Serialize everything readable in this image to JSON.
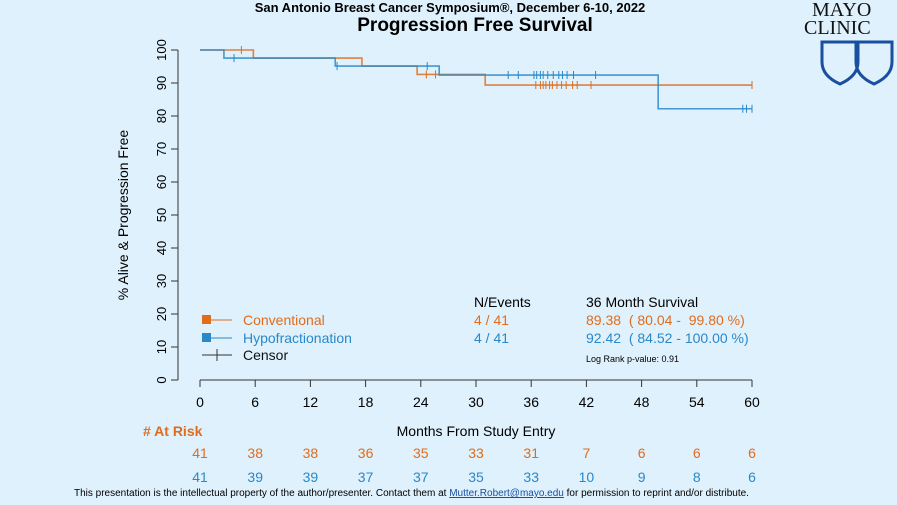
{
  "header": {
    "conference": "San Antonio Breast Cancer Symposium®, December 6-10, 2022",
    "logo_text": [
      "MAYO",
      "CLINIC"
    ]
  },
  "colors": {
    "background": "#dff1fc",
    "conventional": "#e06c1c",
    "hypofractionation": "#2a88c8",
    "at_risk_header": "#e06c1c"
  },
  "chart_data": {
    "type": "line",
    "subtype": "kaplan-meier step",
    "title": "Progression Free Survival",
    "xlabel": "Months From Study Entry",
    "ylabel": "% Alive & Progression Free",
    "xlim": [
      0,
      60
    ],
    "ylim": [
      0,
      100
    ],
    "xticks": [
      0,
      6,
      12,
      18,
      24,
      30,
      36,
      42,
      48,
      54,
      60
    ],
    "yticks": [
      0,
      10,
      20,
      30,
      40,
      50,
      60,
      70,
      80,
      90,
      100
    ],
    "grid": false,
    "series": [
      {
        "name": "Conventional",
        "color": "#e06c1c",
        "steps": [
          [
            0,
            100
          ],
          [
            5.8,
            97.56
          ],
          [
            17.6,
            95.12
          ],
          [
            23.6,
            92.6
          ],
          [
            31,
            89.38
          ],
          [
            60,
            89.38
          ]
        ],
        "censors": [
          4.5,
          24.6,
          25.6,
          36.5,
          37,
          37.3,
          37.6,
          38,
          38.3,
          38.8,
          39.3,
          39.8,
          40.5,
          41,
          42.5,
          60
        ],
        "n_events": "4 / 41",
        "survival_36": "89.38  ( 80.04 -  99.80 %)",
        "at_risk": [
          41,
          38,
          38,
          36,
          35,
          33,
          31,
          7,
          6,
          6,
          6
        ]
      },
      {
        "name": "Hypofractionation",
        "color": "#2a88c8",
        "steps": [
          [
            0,
            100
          ],
          [
            2.6,
            97.56
          ],
          [
            14.7,
            95.12
          ],
          [
            26,
            92.42
          ],
          [
            49.8,
            82.2
          ],
          [
            60,
            82.2
          ]
        ],
        "censors": [
          3.7,
          14.9,
          24.7,
          33.5,
          34.6,
          36.3,
          36.6,
          37,
          37.3,
          37.8,
          38.4,
          39,
          39.4,
          39.9,
          40.6,
          43,
          59,
          59.4,
          60
        ],
        "n_events": "4 / 41",
        "survival_36": "92.42  ( 84.52 - 100.00 %)",
        "at_risk": [
          41,
          39,
          39,
          37,
          37,
          35,
          33,
          10,
          9,
          8,
          6
        ]
      }
    ],
    "legend": {
      "placement": "bottom-left",
      "censor_label": "Censor"
    },
    "table_headers": {
      "n_events": "N/Events",
      "survival": "36 Month Survival"
    },
    "log_rank": "Log Rank p-value: 0.91",
    "at_risk_label": "# At Risk"
  },
  "footer": {
    "text_before": "This presentation is the intellectual property of the author/presenter. Contact them at ",
    "email": "Mutter.Robert@mayo.edu",
    "text_after": " for permission to reprint and/or distribute."
  }
}
